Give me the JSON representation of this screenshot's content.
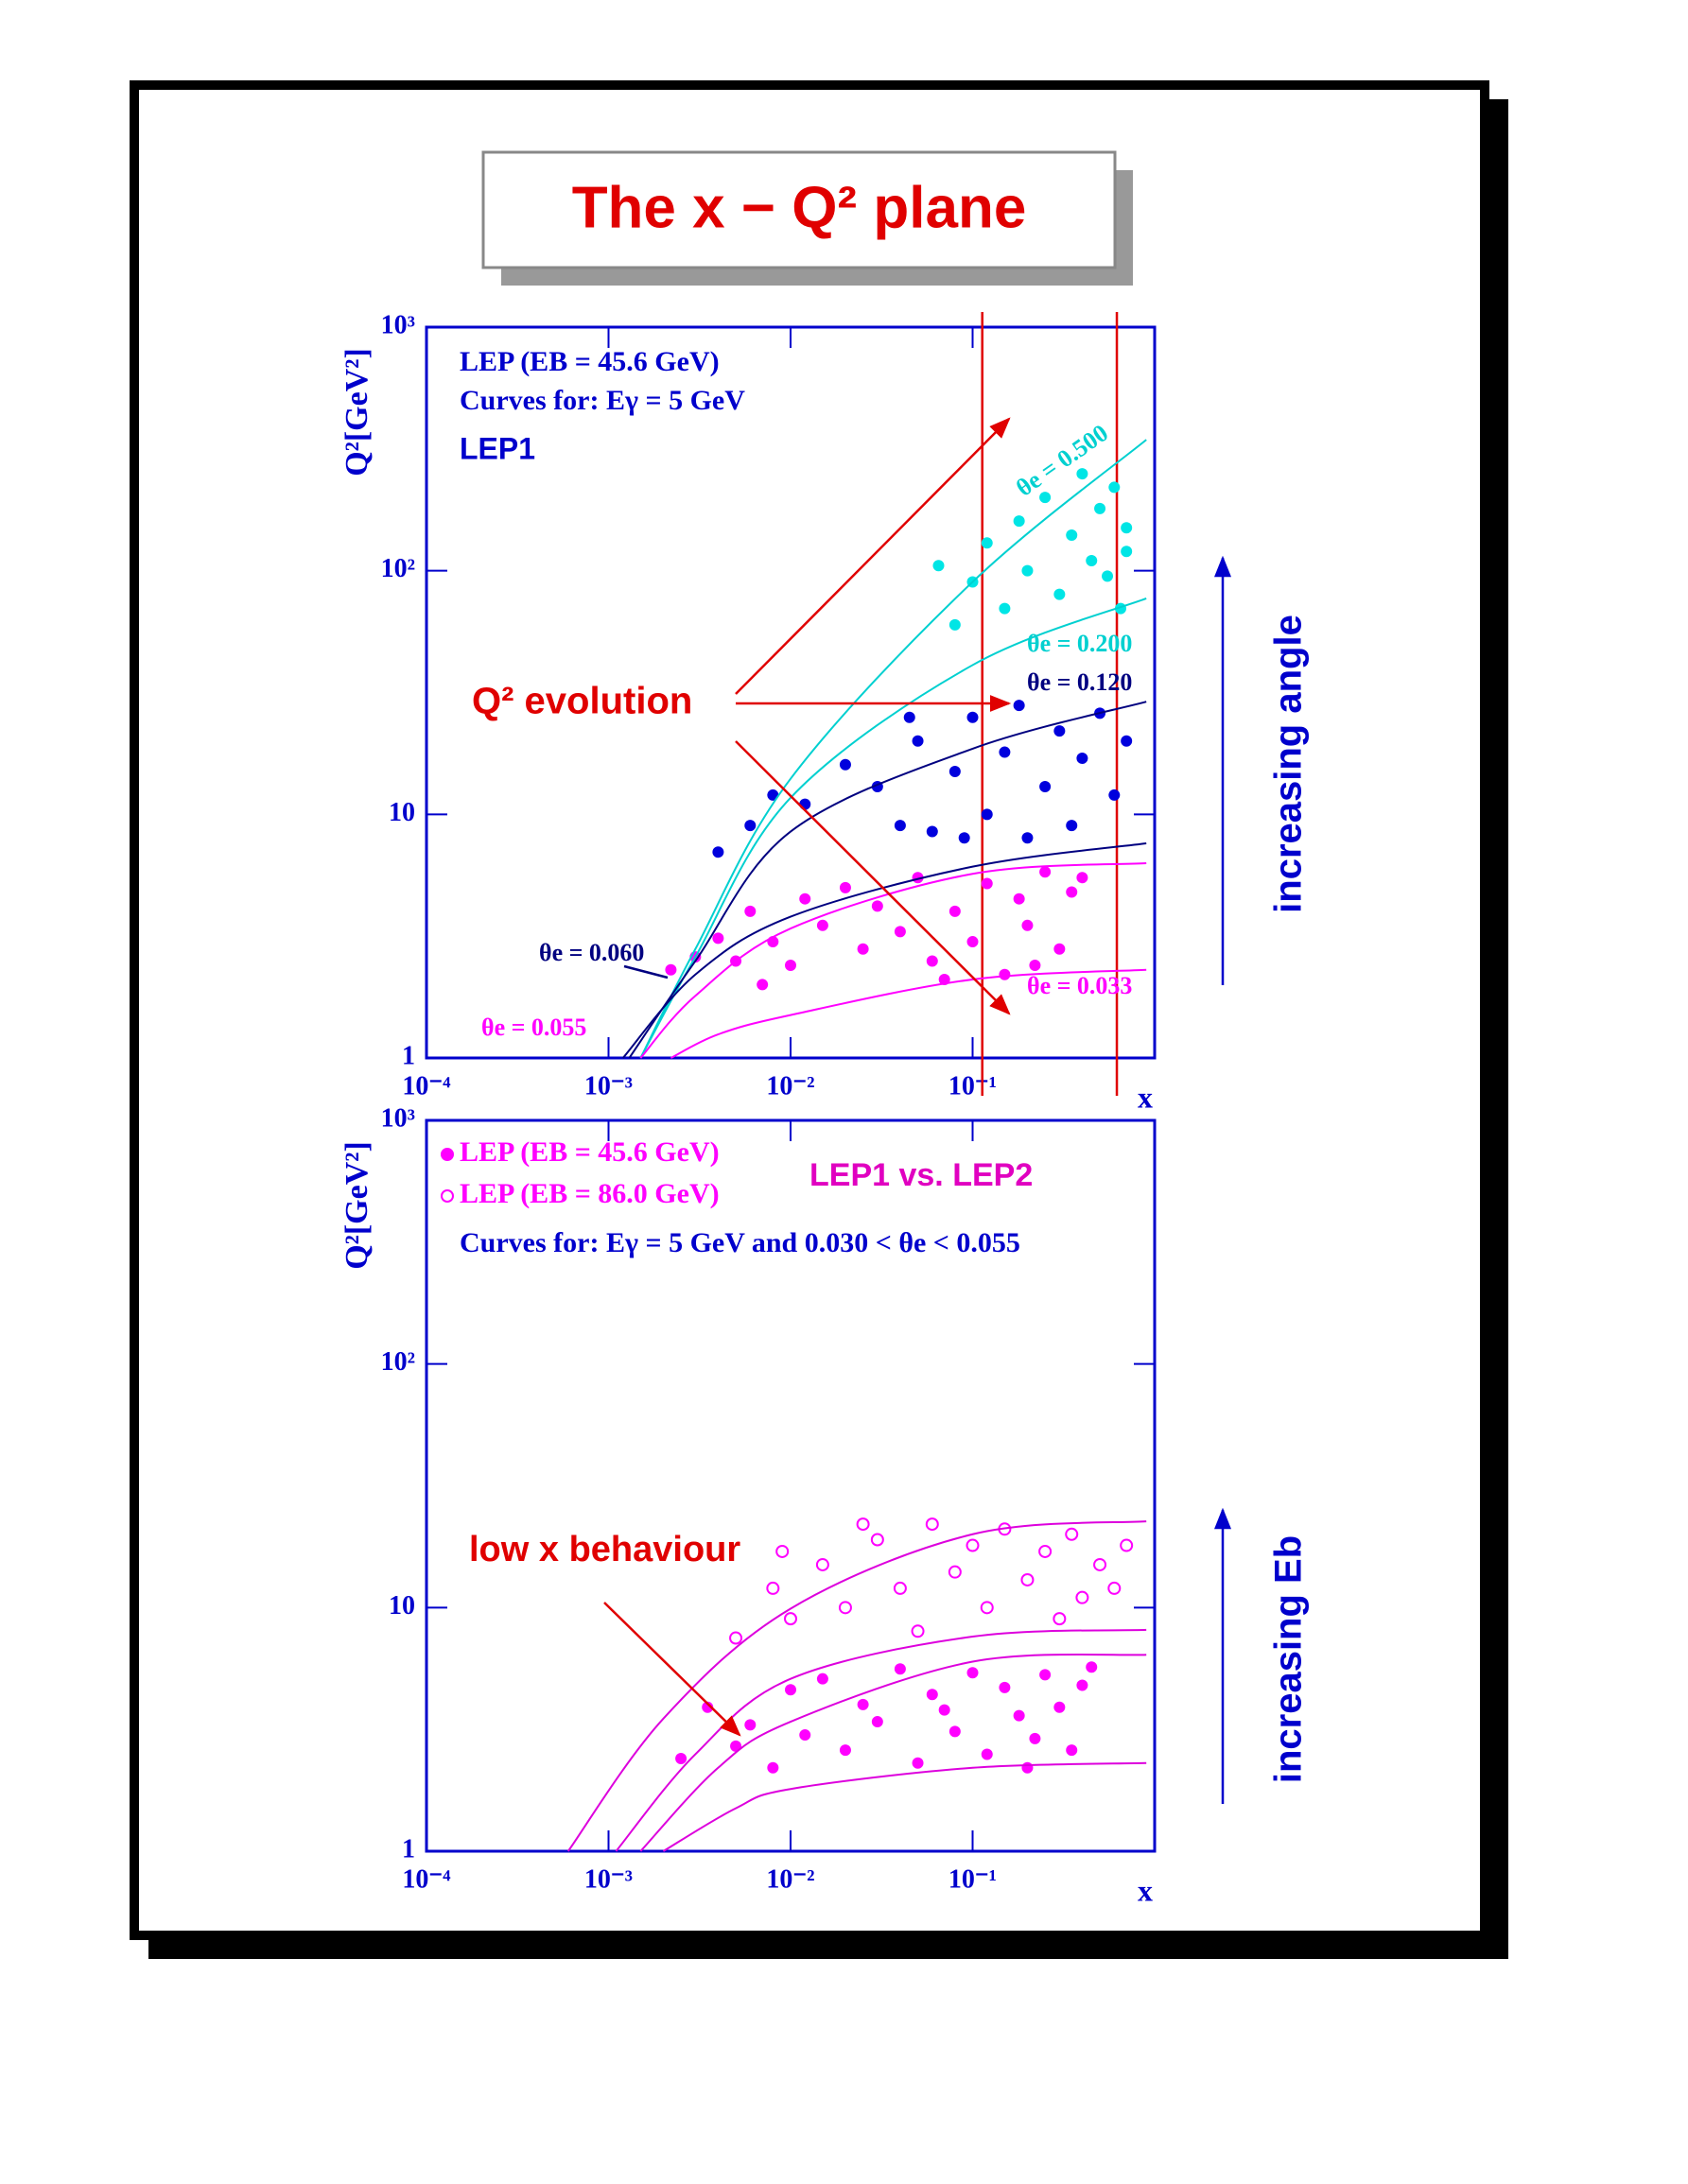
{
  "title": "The x − Q² plane",
  "chart_data": [
    {
      "type": "scatter",
      "xlabel": "x",
      "ylabel": "Q²[GeV²]",
      "xscale": "log",
      "yscale": "log",
      "xlim": [
        0.0001,
        1
      ],
      "ylim": [
        1,
        1000
      ],
      "xticks": [
        {
          "value": 0.0001,
          "label": "10⁻⁴"
        },
        {
          "value": 0.001,
          "label": "10⁻³"
        },
        {
          "value": 0.01,
          "label": "10⁻²"
        },
        {
          "value": 0.1,
          "label": "10⁻¹"
        }
      ],
      "yticks": [
        1,
        10,
        {
          "value": 100,
          "label": "10²"
        },
        {
          "value": 1000,
          "label": "10³"
        }
      ],
      "vlines": [
        0.113,
        0.62
      ],
      "annotations": [
        "LEP (EB = 45.6 GeV)",
        "Curves for: Eγ = 5 GeV",
        "LEP1",
        "Q² evolution",
        "increasing angle"
      ],
      "series": [
        {
          "type": "scatter",
          "marker": "filled",
          "color": "#ff00ff",
          "x": [
            0.0022,
            0.003,
            0.004,
            0.005,
            0.006,
            0.008,
            0.01,
            0.012,
            0.015,
            0.02,
            0.025,
            0.03,
            0.04,
            0.05,
            0.06,
            0.08,
            0.1,
            0.12,
            0.15,
            0.18,
            0.2,
            0.25,
            0.3,
            0.35,
            0.4,
            0.007,
            0.07,
            0.22
          ],
          "values": [
            2.3,
            2.6,
            3.1,
            2.5,
            4.0,
            3.0,
            2.4,
            4.5,
            3.5,
            5.0,
            2.8,
            4.2,
            3.3,
            5.5,
            2.5,
            4.0,
            3.0,
            5.2,
            2.2,
            4.5,
            3.5,
            5.8,
            2.8,
            4.8,
            5.5,
            2.0,
            2.1,
            2.4
          ]
        },
        {
          "type": "scatter",
          "marker": "filled",
          "color": "#0000dd",
          "x": [
            0.004,
            0.006,
            0.008,
            0.012,
            0.02,
            0.03,
            0.04,
            0.05,
            0.06,
            0.08,
            0.1,
            0.12,
            0.15,
            0.18,
            0.2,
            0.25,
            0.3,
            0.35,
            0.4,
            0.5,
            0.6,
            0.7,
            0.045,
            0.09
          ],
          "values": [
            7,
            9,
            12,
            11,
            16,
            13,
            9,
            20,
            8.5,
            15,
            25,
            10,
            18,
            28,
            8,
            13,
            22,
            9,
            17,
            26,
            12,
            20,
            25,
            8
          ]
        },
        {
          "type": "scatter",
          "marker": "filled",
          "color": "#00e5e5",
          "x": [
            0.065,
            0.08,
            0.1,
            0.12,
            0.15,
            0.18,
            0.2,
            0.25,
            0.3,
            0.35,
            0.4,
            0.45,
            0.5,
            0.55,
            0.6,
            0.7,
            0.7,
            0.65
          ],
          "values": [
            105,
            60,
            90,
            130,
            70,
            160,
            100,
            200,
            80,
            140,
            250,
            110,
            180,
            95,
            220,
            150,
            120,
            70
          ]
        },
        {
          "type": "line",
          "name": "θe = 0.500",
          "color": "#00d0d0",
          "x": [
            0.0015,
            0.003,
            0.01,
            0.1,
            0.9
          ],
          "values": [
            1,
            2.8,
            14,
            90,
            345
          ]
        },
        {
          "type": "line",
          "name": "θe = 0.200",
          "color": "#00d0d0",
          "x": [
            0.0015,
            0.003,
            0.01,
            0.1,
            0.9
          ],
          "values": [
            1,
            2.6,
            11.7,
            41,
            77
          ]
        },
        {
          "type": "line",
          "name": "θe = 0.120",
          "color": "#000080",
          "x": [
            0.0013,
            0.003,
            0.01,
            0.1,
            0.9
          ],
          "values": [
            1,
            2.5,
            8.5,
            18.6,
            29
          ]
        },
        {
          "type": "line",
          "name": "θe = 0.060",
          "color": "#000080",
          "x": [
            0.0012,
            0.003,
            0.01,
            0.1,
            0.9
          ],
          "values": [
            1,
            2.2,
            3.8,
            6.1,
            7.6
          ]
        },
        {
          "type": "line",
          "name": "θe = 0.055",
          "color": "#ff00ff",
          "x": [
            0.0015,
            0.003,
            0.01,
            0.1,
            0.9
          ],
          "values": [
            1,
            1.8,
            3.4,
            5.7,
            6.3
          ]
        },
        {
          "type": "line",
          "name": "θe = 0.033",
          "color": "#ff00ff",
          "x": [
            0.0022,
            0.004,
            0.01,
            0.1,
            0.9
          ],
          "values": [
            1,
            1.25,
            1.5,
            2.1,
            2.3
          ]
        }
      ]
    },
    {
      "type": "scatter",
      "xlabel": "x",
      "ylabel": "Q²[GeV²]",
      "xscale": "log",
      "yscale": "log",
      "xlim": [
        0.0001,
        1
      ],
      "ylim": [
        1,
        1000
      ],
      "xticks": [
        {
          "value": 0.0001,
          "label": "10⁻⁴"
        },
        {
          "value": 0.001,
          "label": "10⁻³"
        },
        {
          "value": 0.01,
          "label": "10⁻²"
        },
        {
          "value": 0.1,
          "label": "10⁻¹"
        }
      ],
      "yticks": [
        1,
        10,
        {
          "value": 100,
          "label": "10²"
        },
        {
          "value": 1000,
          "label": "10³"
        }
      ],
      "annotations": [
        "LEP1 vs. LEP2",
        "Curves for: Eγ = 5 GeV and 0.030 < θe < 0.055",
        "low x behaviour",
        "increasing Eb"
      ],
      "series": [
        {
          "type": "scatter",
          "marker": "filled",
          "name": "LEP (EB = 45.6 GeV)",
          "color": "#ff00ff",
          "x": [
            0.0025,
            0.0035,
            0.005,
            0.006,
            0.008,
            0.01,
            0.012,
            0.015,
            0.02,
            0.025,
            0.03,
            0.04,
            0.05,
            0.06,
            0.08,
            0.1,
            0.12,
            0.15,
            0.18,
            0.2,
            0.25,
            0.3,
            0.35,
            0.4,
            0.45,
            0.07,
            0.22
          ],
          "values": [
            2.4,
            3.9,
            2.7,
            3.3,
            2.2,
            4.6,
            3.0,
            5.1,
            2.6,
            4.0,
            3.4,
            5.6,
            2.3,
            4.4,
            3.1,
            5.4,
            2.5,
            4.7,
            3.6,
            2.2,
            5.3,
            3.9,
            2.6,
            4.8,
            5.7,
            3.8,
            2.9
          ]
        },
        {
          "type": "scatter",
          "marker": "open",
          "name": "LEP (EB = 86.0 GeV)",
          "color": "#ff00ff",
          "x": [
            0.005,
            0.008,
            0.01,
            0.015,
            0.02,
            0.03,
            0.04,
            0.05,
            0.06,
            0.08,
            0.1,
            0.12,
            0.15,
            0.2,
            0.25,
            0.3,
            0.35,
            0.4,
            0.5,
            0.6,
            0.7,
            0.009,
            0.025
          ],
          "values": [
            7.5,
            12,
            9,
            15,
            10,
            19,
            12,
            8,
            22,
            14,
            18,
            10,
            21,
            13,
            17,
            9,
            20,
            11,
            15,
            12,
            18,
            17,
            22
          ]
        },
        {
          "type": "line",
          "color": "#dd00dd",
          "x": [
            0.0006,
            0.002,
            0.01,
            0.1,
            0.9
          ],
          "values": [
            1,
            3.5,
            9.9,
            20,
            22.6
          ]
        },
        {
          "type": "line",
          "color": "#dd00dd",
          "x": [
            0.0011,
            0.003,
            0.01,
            0.1,
            0.9
          ],
          "values": [
            1,
            2.5,
            5.1,
            7.6,
            8.1
          ]
        },
        {
          "type": "line",
          "color": "#dd00dd",
          "x": [
            0.0015,
            0.004,
            0.01,
            0.1,
            0.9
          ],
          "values": [
            1,
            2.2,
            3.4,
            6,
            6.4
          ]
        },
        {
          "type": "line",
          "color": "#dd00dd",
          "x": [
            0.002,
            0.005,
            0.01,
            0.1,
            0.9
          ],
          "values": [
            1,
            1.5,
            1.8,
            2.2,
            2.3
          ]
        }
      ]
    }
  ]
}
